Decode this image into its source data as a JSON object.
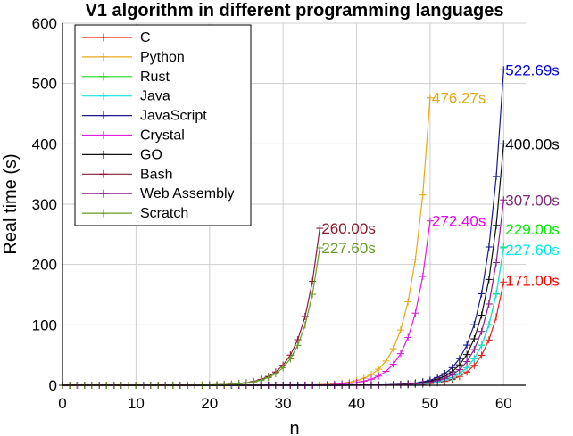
{
  "chart_data": {
    "type": "line",
    "title": "V1 algorithm in different programming languages",
    "xlabel": "n",
    "ylabel": "Real time (s)",
    "xlim": [
      0,
      63
    ],
    "ylim": [
      0,
      600
    ],
    "x_ticks": [
      "0",
      "10",
      "20",
      "30",
      "40",
      "50",
      "60"
    ],
    "y_ticks": [
      "0",
      "100",
      "200",
      "300",
      "400",
      "500",
      "600"
    ],
    "grid": true,
    "legend": "top-left",
    "series": [
      {
        "name": "C",
        "color": "#e8221b",
        "end_label": "171.00s",
        "n_end": 60,
        "y_end": 171.0
      },
      {
        "name": "Python",
        "color": "#e5a91a",
        "end_label": "476.27s",
        "n_end": 50,
        "y_end": 476.27
      },
      {
        "name": "Rust",
        "color": "#1fd81f",
        "end_label": "229.00s",
        "n_end": 60,
        "y_end": 229.0
      },
      {
        "name": "Java",
        "color": "#1fe0e0",
        "end_label": "227.60s",
        "n_end": 60,
        "y_end": 227.6
      },
      {
        "name": "JavaScript",
        "color": "#1a1a8c",
        "end_label": "522.69s",
        "n_end": 60,
        "y_end": 522.69
      },
      {
        "name": "Crystal",
        "color": "#e020e0",
        "end_label": "272.40s",
        "n_end": 50,
        "y_end": 272.4
      },
      {
        "name": "GO",
        "color": "#111111",
        "end_label": "400.00s",
        "n_end": 60,
        "y_end": 400.0
      },
      {
        "name": "Bash",
        "color": "#8b1a3a",
        "end_label": "260.00s",
        "n_end": 35,
        "y_end": 260.0
      },
      {
        "name": "Web Assembly",
        "color": "#8a1f8a",
        "end_label": "307.00s",
        "n_end": 60,
        "y_end": 307.0
      },
      {
        "name": "Scratch",
        "color": "#6b9a2a",
        "end_label": "227.60s",
        "n_end": 35,
        "y_end": 227.6
      }
    ]
  },
  "colors": {
    "C_label": "#ff0000",
    "Python_label": "#e5a91a",
    "Rust_label": "#00ee00",
    "Java_label": "#00eaea",
    "JavaScript_label": "#0000dd",
    "Crystal_label": "#ee00ee",
    "GO_label": "#000000",
    "Bash_label": "#8b1a2a",
    "WebAssembly_label": "#7a2b7a",
    "Scratch_label": "#6b9a2a"
  }
}
